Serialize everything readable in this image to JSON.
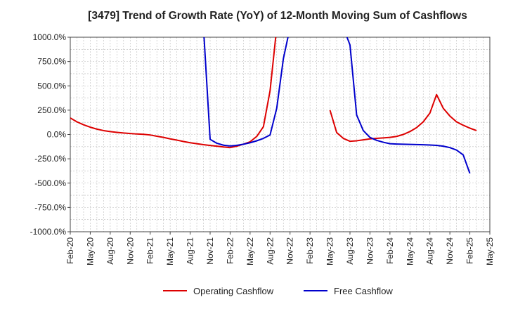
{
  "chart_data": {
    "type": "line",
    "title": "[3479]  Trend of Growth Rate (YoY) of 12-Month Moving Sum of Cashflows",
    "xlabel": "",
    "ylabel": "",
    "ylim": [
      -1000,
      1000
    ],
    "yticks": [
      1000,
      750,
      500,
      250,
      0,
      -250,
      -500,
      -750,
      -1000
    ],
    "ytick_labels": [
      "1000.0%",
      "750.0%",
      "500.0%",
      "250.0%",
      "0.0%",
      "-250.0%",
      "-500.0%",
      "-750.0%",
      "-1000.0%"
    ],
    "xlim": [
      "2020-02",
      "2025-05"
    ],
    "xticks": [
      "2020-02",
      "2020-05",
      "2020-08",
      "2020-11",
      "2021-02",
      "2021-05",
      "2021-08",
      "2021-11",
      "2022-02",
      "2022-05",
      "2022-08",
      "2022-11",
      "2023-02",
      "2023-05",
      "2023-08",
      "2023-11",
      "2024-02",
      "2024-05",
      "2024-08",
      "2024-11",
      "2025-02",
      "2025-05"
    ],
    "xtick_labels": [
      "Feb-20",
      "May-20",
      "Aug-20",
      "Nov-20",
      "Feb-21",
      "May-21",
      "Aug-21",
      "Nov-21",
      "Feb-22",
      "May-22",
      "Aug-22",
      "Nov-22",
      "Feb-23",
      "May-23",
      "Aug-23",
      "Nov-23",
      "Feb-24",
      "May-24",
      "Aug-24",
      "Nov-24",
      "Feb-25",
      "May-25"
    ],
    "grid": true,
    "legend_position": "bottom",
    "series": [
      {
        "name": "Operating Cashflow",
        "color": "#dd0000",
        "points": [
          [
            "2020-02",
            170
          ],
          [
            "2020-03",
            130
          ],
          [
            "2020-04",
            100
          ],
          [
            "2020-05",
            75
          ],
          [
            "2020-06",
            55
          ],
          [
            "2020-07",
            40
          ],
          [
            "2020-08",
            30
          ],
          [
            "2020-09",
            22
          ],
          [
            "2020-10",
            15
          ],
          [
            "2020-11",
            10
          ],
          [
            "2020-12",
            5
          ],
          [
            "2021-01",
            2
          ],
          [
            "2021-02",
            -5
          ],
          [
            "2021-03",
            -18
          ],
          [
            "2021-04",
            -30
          ],
          [
            "2021-05",
            -45
          ],
          [
            "2021-06",
            -58
          ],
          [
            "2021-07",
            -72
          ],
          [
            "2021-08",
            -85
          ],
          [
            "2021-09",
            -95
          ],
          [
            "2021-10",
            -105
          ],
          [
            "2021-11",
            -113
          ],
          [
            "2021-12",
            -120
          ],
          [
            "2022-01",
            -128
          ],
          [
            "2022-02",
            -135
          ],
          [
            "2022-03",
            -120
          ],
          [
            "2022-04",
            -100
          ],
          [
            "2022-05",
            -75
          ],
          [
            "2022-06",
            -20
          ],
          [
            "2022-07",
            80
          ],
          [
            "2022-08",
            450
          ],
          [
            "2022-09",
            1100
          ],
          null,
          [
            "2023-05",
            250
          ],
          [
            "2023-06",
            20
          ],
          [
            "2023-07",
            -40
          ],
          [
            "2023-08",
            -70
          ],
          [
            "2023-09",
            -65
          ],
          [
            "2023-10",
            -55
          ],
          [
            "2023-11",
            -45
          ],
          [
            "2023-12",
            -40
          ],
          [
            "2024-01",
            -35
          ],
          [
            "2024-02",
            -30
          ],
          [
            "2024-03",
            -20
          ],
          [
            "2024-04",
            0
          ],
          [
            "2024-05",
            30
          ],
          [
            "2024-06",
            70
          ],
          [
            "2024-07",
            130
          ],
          [
            "2024-08",
            220
          ],
          [
            "2024-09",
            410
          ],
          [
            "2024-10",
            270
          ],
          [
            "2024-11",
            190
          ],
          [
            "2024-12",
            130
          ],
          [
            "2025-01",
            95
          ],
          [
            "2025-02",
            65
          ],
          [
            "2025-03",
            40
          ]
        ]
      },
      {
        "name": "Free Cashflow",
        "color": "#0000cc",
        "points": [
          [
            "2021-10",
            1100
          ],
          [
            "2021-11",
            -50
          ],
          [
            "2021-12",
            -90
          ],
          [
            "2022-01",
            -110
          ],
          [
            "2022-02",
            -118
          ],
          [
            "2022-03",
            -112
          ],
          [
            "2022-04",
            -100
          ],
          [
            "2022-05",
            -85
          ],
          [
            "2022-06",
            -65
          ],
          [
            "2022-07",
            -40
          ],
          [
            "2022-08",
            -5
          ],
          [
            "2022-09",
            270
          ],
          [
            "2022-10",
            780
          ],
          [
            "2022-11",
            1100
          ],
          null,
          [
            "2023-07",
            1100
          ],
          [
            "2023-08",
            920
          ],
          [
            "2023-09",
            200
          ],
          [
            "2023-10",
            40
          ],
          [
            "2023-11",
            -30
          ],
          [
            "2023-12",
            -60
          ],
          [
            "2024-01",
            -80
          ],
          [
            "2024-02",
            -95
          ],
          [
            "2024-03",
            -98
          ],
          [
            "2024-04",
            -100
          ],
          [
            "2024-05",
            -102
          ],
          [
            "2024-06",
            -104
          ],
          [
            "2024-07",
            -106
          ],
          [
            "2024-08",
            -108
          ],
          [
            "2024-09",
            -112
          ],
          [
            "2024-10",
            -120
          ],
          [
            "2024-11",
            -135
          ],
          [
            "2024-12",
            -160
          ],
          [
            "2025-01",
            -210
          ],
          [
            "2025-02",
            -400
          ]
        ]
      }
    ]
  }
}
